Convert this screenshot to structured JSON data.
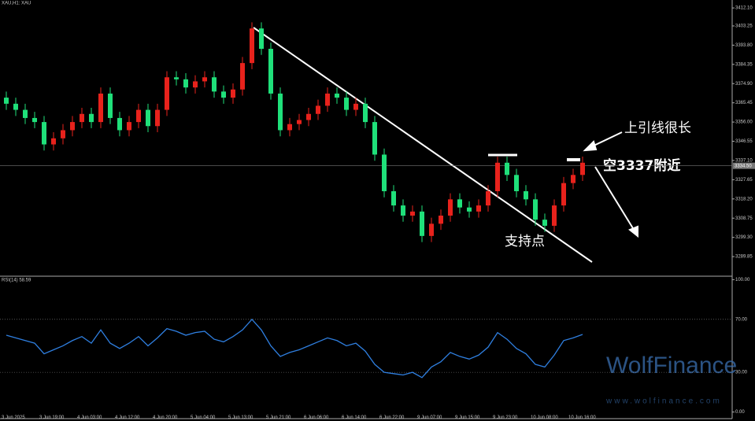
{
  "chart_data": [
    {
      "type": "candlestick",
      "title": "XAU,H1: XAU",
      "categories": [
        "3 Jun 2025",
        null,
        null,
        null,
        "3 Jun 19:00",
        null,
        null,
        null,
        "4 Jun 03:00",
        null,
        null,
        null,
        "4 Jun 12:00",
        null,
        null,
        null,
        "4 Jun 20:00",
        null,
        null,
        null,
        "5 Jun 04:00",
        null,
        null,
        null,
        "5 Jun 13:00",
        null,
        null,
        null,
        "5 Jun 21:00",
        null,
        null,
        null,
        "6 Jun 06:00",
        null,
        null,
        null,
        "6 Jun 14:00",
        null,
        null,
        null,
        "6 Jun 22:00",
        null,
        null,
        null,
        "9 Jun 07:00",
        null,
        null,
        null,
        "9 Jun 15:00",
        null,
        null,
        null,
        "9 Jun 23:00",
        null,
        null,
        null,
        "10 Jun 08:00",
        null,
        null,
        null,
        "10 Jun 16:00",
        null
      ],
      "open": [
        3368,
        3365,
        3362,
        3358,
        3356,
        3345,
        3348,
        3352,
        3356,
        3360,
        3356,
        3370,
        3358,
        3352,
        3356,
        3362,
        3354,
        3362,
        3378,
        3377,
        3373,
        3376,
        3378,
        3371,
        3368,
        3372,
        3385,
        3402,
        3392,
        3370,
        3352,
        3355,
        3357,
        3360,
        3364,
        3370,
        3368,
        3362,
        3365,
        3356,
        3340,
        3322,
        3315,
        3310,
        3312,
        3300,
        3306,
        3310,
        3318,
        3314,
        3312,
        3315,
        3322,
        3336,
        3330,
        3322,
        3318,
        3308,
        3305,
        3315,
        3326,
        3330
      ],
      "high": [
        3371,
        3368,
        3365,
        3361,
        3359,
        3351,
        3355,
        3359,
        3363,
        3363,
        3373,
        3373,
        3361,
        3359,
        3365,
        3365,
        3365,
        3381,
        3381,
        3380,
        3379,
        3381,
        3381,
        3374,
        3375,
        3388,
        3405,
        3405,
        3395,
        3373,
        3358,
        3360,
        3363,
        3367,
        3373,
        3373,
        3371,
        3368,
        3368,
        3359,
        3343,
        3325,
        3318,
        3315,
        3315,
        3309,
        3313,
        3321,
        3321,
        3317,
        3318,
        3325,
        3339,
        3339,
        3333,
        3325,
        3321,
        3311,
        3318,
        3329,
        3333,
        3339
      ],
      "low": [
        3362,
        3359,
        3355,
        3353,
        3342,
        3342,
        3345,
        3349,
        3353,
        3353,
        3353,
        3355,
        3349,
        3349,
        3353,
        3351,
        3351,
        3359,
        3374,
        3370,
        3370,
        3373,
        3368,
        3365,
        3365,
        3369,
        3382,
        3389,
        3367,
        3349,
        3349,
        3352,
        3354,
        3357,
        3361,
        3365,
        3359,
        3359,
        3353,
        3337,
        3319,
        3312,
        3307,
        3307,
        3297,
        3297,
        3303,
        3307,
        3311,
        3309,
        3309,
        3312,
        3319,
        3327,
        3319,
        3315,
        3305,
        3302,
        3302,
        3312,
        3323,
        3327
      ],
      "close": [
        3365,
        3362,
        3358,
        3356,
        3345,
        3348,
        3352,
        3356,
        3360,
        3356,
        3370,
        3358,
        3352,
        3356,
        3362,
        3354,
        3362,
        3378,
        3377,
        3373,
        3376,
        3378,
        3371,
        3368,
        3372,
        3385,
        3402,
        3392,
        3370,
        3352,
        3355,
        3357,
        3360,
        3364,
        3370,
        3368,
        3362,
        3365,
        3356,
        3340,
        3322,
        3315,
        3310,
        3312,
        3300,
        3306,
        3310,
        3318,
        3314,
        3312,
        3315,
        3322,
        3336,
        3330,
        3322,
        3318,
        3308,
        3305,
        3315,
        3326,
        3330,
        3336
      ],
      "up_color": "#e8221c",
      "down_color": "#1fe07a",
      "ylim": [
        3280.6,
        3416.0
      ],
      "yticks": [
        {
          "value": 3412.1,
          "label": "3412.10"
        },
        {
          "value": 3403.25,
          "label": "3403.25"
        },
        {
          "value": 3393.8,
          "label": "3393.80"
        },
        {
          "value": 3384.35,
          "label": "3384.35"
        },
        {
          "value": 3374.9,
          "label": "3374.90"
        },
        {
          "value": 3365.45,
          "label": "3365.45"
        },
        {
          "value": 3356,
          "label": "3356.00"
        },
        {
          "value": 3346.55,
          "label": "3346.55"
        },
        {
          "value": 3337.1,
          "label": "3337.10"
        },
        {
          "value": 3327.65,
          "label": "3327.65"
        },
        {
          "value": 3318.2,
          "label": "3318.20"
        },
        {
          "value": 3308.75,
          "label": "3308.75"
        },
        {
          "value": 3299.3,
          "label": "3299.30"
        },
        {
          "value": 3289.85,
          "label": "3289.85"
        }
      ],
      "current_price": {
        "value": 3334.5,
        "label": "3334.50"
      },
      "annotations": [
        "上引线很长",
        "空3337附近",
        "支持点"
      ]
    },
    {
      "type": "line",
      "title": "RSI(14) 58.59",
      "color": "#2f7fe0",
      "values": [
        58,
        56,
        54,
        52,
        44,
        47,
        50,
        54,
        57,
        52,
        62,
        52,
        48,
        52,
        57,
        50,
        56,
        63,
        61,
        58,
        60,
        61,
        55,
        53,
        57,
        62,
        70,
        62,
        50,
        42,
        45,
        47,
        50,
        53,
        56,
        54,
        50,
        52,
        46,
        36,
        30,
        29,
        28,
        30,
        26,
        34,
        38,
        45,
        42,
        40,
        43,
        49,
        60,
        55,
        48,
        44,
        36,
        34,
        43,
        54,
        56,
        58.59
      ],
      "ylim": [
        -5,
        102
      ],
      "yticks": [
        {
          "value": 100,
          "label": "100.00"
        },
        {
          "value": 70,
          "label": "70.00"
        },
        {
          "value": 30,
          "label": "30.00"
        },
        {
          "value": 0,
          "label": "0.00"
        }
      ],
      "watermark": "WolfFinance",
      "watermark_url": "www.wolfinance.com"
    }
  ]
}
